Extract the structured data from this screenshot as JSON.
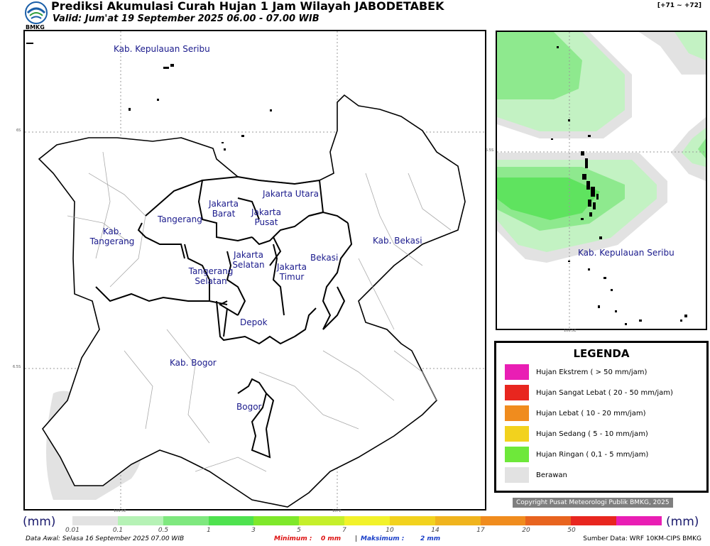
{
  "header": {
    "title": "Prediksi Akumulasi Curah Hujan 1 Jam Wilayah JABODETABEK",
    "valid": "Valid: Jum'at 19 September 2025 06.00 - 07.00 WIB",
    "run_offset": "[+71 ~ +72]",
    "logo_text": "BMKG",
    "logo_icon": "bmkg-logo-icon"
  },
  "main_map": {
    "labels": {
      "kep_seribu": "Kab. Kepulauan Seribu",
      "jakarta_utara": "Jakarta Utara",
      "jakarta_barat": "Jakarta Barat",
      "jakarta_pusat": "Jakarta Pusat",
      "tangerang": "Tangerang",
      "kab_tangerang": "Kab. Tangerang",
      "jakarta_selatan": "Jakarta Selatan",
      "jakarta_timur": "Jakarta Timur",
      "bekasi": "Bekasi",
      "kab_bekasi": "Kab. Bekasi",
      "tangerang_selatan": "Tangerang Selatan",
      "depok": "Depok",
      "kab_bogor": "Kab. Bogor",
      "bogor": "Bogor"
    },
    "ticks": {
      "lat_6s": "6S",
      "lat_65s": "6.5S",
      "lon_1065e": "106.5E",
      "lon_107e": "107E"
    },
    "colors": {
      "berawan": "#e2e2e2"
    }
  },
  "inset_map": {
    "label": "Kab. Kepulauan Seribu",
    "lat_tick": "5.5S",
    "lon_tick": "106.5E",
    "colors": {
      "ringan_light": "#c3f2c3",
      "ringan_mid": "#8ee98e",
      "ringan_strong": "#5fe35f",
      "berawan": "#e2e2e2"
    }
  },
  "legend": {
    "title": "LEGENDA",
    "items": [
      {
        "label": "Hujan Ekstrem ( > 50 mm/jam)",
        "color": "#e91eb4"
      },
      {
        "label": "Hujan Sangat Lebat ( 20 - 50 mm/jam)",
        "color": "#e8261f"
      },
      {
        "label": "Hujan Lebat ( 10 - 20 mm/jam)",
        "color": "#f08c1e"
      },
      {
        "label": "Hujan Sedang ( 5 - 10 mm/jam)",
        "color": "#f2d21e"
      },
      {
        "label": "Hujan Ringan ( 0,1 - 5 mm/jam)",
        "color": "#6ee83a"
      },
      {
        "label": "Berawan",
        "color": "#e2e2e2"
      }
    ]
  },
  "copyright": "Copyright Pusat Meteorologi Publik BMKG, 2025",
  "colorbar": {
    "unit": "(mm)",
    "ticks": [
      "0.01",
      "0.1",
      "0.5",
      "1",
      "3",
      "5",
      "7",
      "10",
      "14",
      "17",
      "20",
      "50"
    ],
    "colors": [
      "#e2e2e2",
      "#b6f2b6",
      "#7fe87f",
      "#4fe24f",
      "#7fe82b",
      "#c5ef2b",
      "#f2f22b",
      "#f2d21e",
      "#f0b41e",
      "#f08c1e",
      "#e8641f",
      "#e8261f",
      "#e91eb4"
    ]
  },
  "footer": {
    "data_awal": "Data Awal: Selasa 16 September 2025 07.00 WIB",
    "minimum_label": "Minimum :",
    "minimum_value": "0 mm",
    "separator": "|",
    "maksimum_label": "Maksimum :",
    "maksimum_value": "2 mm",
    "sumber": "Sumber Data: WRF 10KM-CIPS BMKG"
  }
}
